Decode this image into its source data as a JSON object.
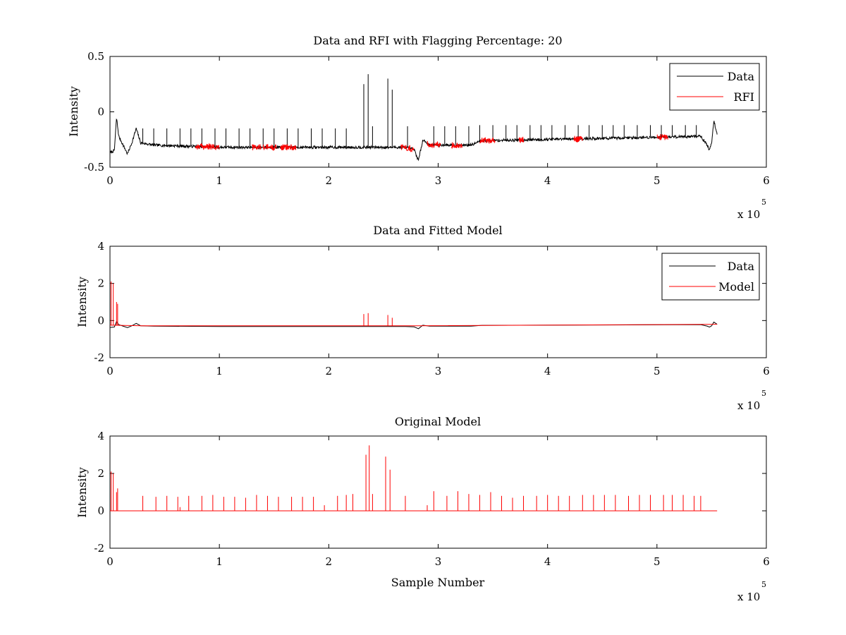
{
  "chart_data": [
    {
      "type": "line",
      "title": "Data and RFI with Flagging Percentage: 20",
      "xlabel": "",
      "ylabel": "Intensity",
      "xlim": [
        0,
        600000
      ],
      "ylim": [
        -0.5,
        0.5
      ],
      "xticks": [
        0,
        100000,
        200000,
        300000,
        400000,
        500000,
        600000
      ],
      "xtick_labels": [
        "0",
        "1",
        "2",
        "3",
        "4",
        "5",
        "6"
      ],
      "yticks": [
        -0.5,
        0,
        0.5
      ],
      "ytick_labels": [
        "-0.5",
        "0",
        "0.5"
      ],
      "x_multiplier": {
        "base": "x 10",
        "exponent": "5"
      },
      "legend": {
        "position": "top-right",
        "entries": [
          "Data",
          "RFI"
        ]
      },
      "series": [
        {
          "name": "Data",
          "color": "#000000",
          "baseline": [
            [
              0,
              -0.37
            ],
            [
              4000,
              -0.35
            ],
            [
              6000,
              -0.05
            ],
            [
              8000,
              -0.22
            ],
            [
              12000,
              -0.3
            ],
            [
              16000,
              -0.38
            ],
            [
              20000,
              -0.28
            ],
            [
              24000,
              -0.15
            ],
            [
              28000,
              -0.28
            ],
            [
              40000,
              -0.3
            ],
            [
              100000,
              -0.32
            ],
            [
              200000,
              -0.32
            ],
            [
              270000,
              -0.32
            ],
            [
              278000,
              -0.34
            ],
            [
              282000,
              -0.44
            ],
            [
              286000,
              -0.25
            ],
            [
              292000,
              -0.3
            ],
            [
              330000,
              -0.3
            ],
            [
              340000,
              -0.26
            ],
            [
              450000,
              -0.24
            ],
            [
              540000,
              -0.22
            ],
            [
              546000,
              -0.3
            ],
            [
              548000,
              -0.35
            ],
            [
              550000,
              -0.28
            ],
            [
              552000,
              -0.08
            ],
            [
              555000,
              -0.2
            ]
          ],
          "spikes": [
            [
              30000,
              -0.15
            ],
            [
              40000,
              -0.15
            ],
            [
              52000,
              -0.15
            ],
            [
              64000,
              -0.15
            ],
            [
              74000,
              -0.15
            ],
            [
              84000,
              -0.15
            ],
            [
              96000,
              -0.15
            ],
            [
              106000,
              -0.15
            ],
            [
              118000,
              -0.15
            ],
            [
              128000,
              -0.15
            ],
            [
              140000,
              -0.15
            ],
            [
              150000,
              -0.15
            ],
            [
              162000,
              -0.15
            ],
            [
              172000,
              -0.15
            ],
            [
              184000,
              -0.15
            ],
            [
              194000,
              -0.15
            ],
            [
              206000,
              -0.15
            ],
            [
              216000,
              -0.15
            ],
            [
              232000,
              0.25
            ],
            [
              236000,
              0.34
            ],
            [
              240000,
              -0.13
            ],
            [
              254000,
              0.3
            ],
            [
              258000,
              0.2
            ],
            [
              272000,
              -0.13
            ],
            [
              296000,
              -0.13
            ],
            [
              306000,
              -0.13
            ],
            [
              316000,
              -0.13
            ],
            [
              328000,
              -0.13
            ],
            [
              338000,
              -0.12
            ],
            [
              350000,
              -0.12
            ],
            [
              362000,
              -0.12
            ],
            [
              372000,
              -0.12
            ],
            [
              384000,
              -0.12
            ],
            [
              394000,
              -0.12
            ],
            [
              404000,
              -0.12
            ],
            [
              416000,
              -0.12
            ],
            [
              428000,
              -0.12
            ],
            [
              438000,
              -0.12
            ],
            [
              450000,
              -0.12
            ],
            [
              460000,
              -0.12
            ],
            [
              470000,
              -0.12
            ],
            [
              482000,
              -0.12
            ],
            [
              494000,
              -0.12
            ],
            [
              504000,
              -0.12
            ],
            [
              514000,
              -0.12
            ],
            [
              526000,
              -0.12
            ],
            [
              536000,
              -0.12
            ]
          ],
          "noise_amplitude": 0.025
        },
        {
          "name": "RFI",
          "color": "#ff0000",
          "flagged_ranges": [
            [
              78000,
              100000
            ],
            [
              130000,
              138000
            ],
            [
              140000,
              152000
            ],
            [
              156000,
              170000
            ],
            [
              266000,
              278000
            ],
            [
              290000,
              302000
            ],
            [
              312000,
              322000
            ],
            [
              338000,
              352000
            ],
            [
              374000,
              378000
            ],
            [
              424000,
              432000
            ],
            [
              500000,
              510000
            ]
          ]
        }
      ]
    },
    {
      "type": "line",
      "title": "Data and Fitted Model",
      "xlabel": "",
      "ylabel": "Intensity",
      "xlim": [
        0,
        600000
      ],
      "ylim": [
        -2,
        4
      ],
      "xticks": [
        0,
        100000,
        200000,
        300000,
        400000,
        500000,
        600000
      ],
      "xtick_labels": [
        "0",
        "1",
        "2",
        "3",
        "4",
        "5",
        "6"
      ],
      "yticks": [
        -2,
        0,
        2,
        4
      ],
      "ytick_labels": [
        "-2",
        "0",
        "2",
        "4"
      ],
      "x_multiplier": {
        "base": "x 10",
        "exponent": "5"
      },
      "legend": {
        "position": "top-right",
        "entries": [
          "Data",
          "Model"
        ]
      },
      "series": [
        {
          "name": "Data",
          "color": "#000000",
          "baseline": [
            [
              0,
              -0.37
            ],
            [
              4000,
              -0.35
            ],
            [
              6000,
              -0.05
            ],
            [
              8000,
              -0.22
            ],
            [
              12000,
              -0.3
            ],
            [
              16000,
              -0.38
            ],
            [
              20000,
              -0.28
            ],
            [
              24000,
              -0.15
            ],
            [
              28000,
              -0.28
            ],
            [
              40000,
              -0.3
            ],
            [
              100000,
              -0.32
            ],
            [
              200000,
              -0.32
            ],
            [
              270000,
              -0.32
            ],
            [
              278000,
              -0.34
            ],
            [
              282000,
              -0.44
            ],
            [
              286000,
              -0.25
            ],
            [
              292000,
              -0.3
            ],
            [
              330000,
              -0.3
            ],
            [
              340000,
              -0.26
            ],
            [
              450000,
              -0.24
            ],
            [
              540000,
              -0.22
            ],
            [
              546000,
              -0.3
            ],
            [
              548000,
              -0.35
            ],
            [
              550000,
              -0.28
            ],
            [
              552000,
              -0.08
            ],
            [
              555000,
              -0.2
            ]
          ]
        },
        {
          "name": "Model",
          "color": "#ff0000",
          "baseline": [
            [
              0,
              -0.25
            ],
            [
              30000,
              -0.28
            ],
            [
              280000,
              -0.28
            ],
            [
              555000,
              -0.2
            ]
          ],
          "spikes": [
            [
              1000,
              2.1
            ],
            [
              3000,
              2.0
            ],
            [
              6000,
              1.0
            ],
            [
              7000,
              0.9
            ],
            [
              232000,
              0.35
            ],
            [
              236000,
              0.4
            ],
            [
              254000,
              0.3
            ],
            [
              258000,
              0.15
            ]
          ]
        }
      ]
    },
    {
      "type": "line",
      "title": "Original Model",
      "xlabel": "Sample Number",
      "ylabel": "Intensity",
      "xlim": [
        0,
        600000
      ],
      "ylim": [
        -2,
        4
      ],
      "xticks": [
        0,
        100000,
        200000,
        300000,
        400000,
        500000,
        600000
      ],
      "xtick_labels": [
        "0",
        "1",
        "2",
        "3",
        "4",
        "5",
        "6"
      ],
      "yticks": [
        -2,
        0,
        2,
        4
      ],
      "ytick_labels": [
        "-2",
        "0",
        "2",
        "4"
      ],
      "x_multiplier": {
        "base": "x 10",
        "exponent": "5"
      },
      "series": [
        {
          "name": "Model",
          "color": "#ff0000",
          "baseline": [
            [
              0,
              0
            ],
            [
              555000,
              0
            ]
          ],
          "spikes": [
            [
              1000,
              2.1
            ],
            [
              3000,
              2.0
            ],
            [
              6000,
              1.0
            ],
            [
              7000,
              1.2
            ],
            [
              30000,
              0.8
            ],
            [
              42000,
              0.75
            ],
            [
              52000,
              0.8
            ],
            [
              62000,
              0.75
            ],
            [
              64000,
              0.2
            ],
            [
              72000,
              0.8
            ],
            [
              84000,
              0.8
            ],
            [
              94000,
              0.85
            ],
            [
              104000,
              0.75
            ],
            [
              114000,
              0.75
            ],
            [
              124000,
              0.7
            ],
            [
              134000,
              0.85
            ],
            [
              144000,
              0.8
            ],
            [
              154000,
              0.75
            ],
            [
              166000,
              0.75
            ],
            [
              176000,
              0.75
            ],
            [
              186000,
              0.75
            ],
            [
              196000,
              0.3
            ],
            [
              208000,
              0.8
            ],
            [
              216000,
              0.85
            ],
            [
              222000,
              0.9
            ],
            [
              234000,
              3.0
            ],
            [
              237000,
              3.5
            ],
            [
              240000,
              0.9
            ],
            [
              252000,
              2.9
            ],
            [
              256000,
              2.2
            ],
            [
              270000,
              0.8
            ],
            [
              290000,
              0.3
            ],
            [
              296000,
              1.05
            ],
            [
              308000,
              0.8
            ],
            [
              318000,
              1.05
            ],
            [
              328000,
              0.9
            ],
            [
              338000,
              0.85
            ],
            [
              348000,
              1.0
            ],
            [
              358000,
              0.8
            ],
            [
              368000,
              0.7
            ],
            [
              378000,
              0.8
            ],
            [
              390000,
              0.8
            ],
            [
              400000,
              0.85
            ],
            [
              410000,
              0.8
            ],
            [
              420000,
              0.8
            ],
            [
              432000,
              0.85
            ],
            [
              442000,
              0.85
            ],
            [
              452000,
              0.85
            ],
            [
              462000,
              0.85
            ],
            [
              474000,
              0.8
            ],
            [
              484000,
              0.85
            ],
            [
              494000,
              0.85
            ],
            [
              506000,
              0.85
            ],
            [
              514000,
              0.85
            ],
            [
              524000,
              0.85
            ],
            [
              534000,
              0.8
            ],
            [
              540000,
              0.8
            ]
          ]
        }
      ]
    }
  ]
}
